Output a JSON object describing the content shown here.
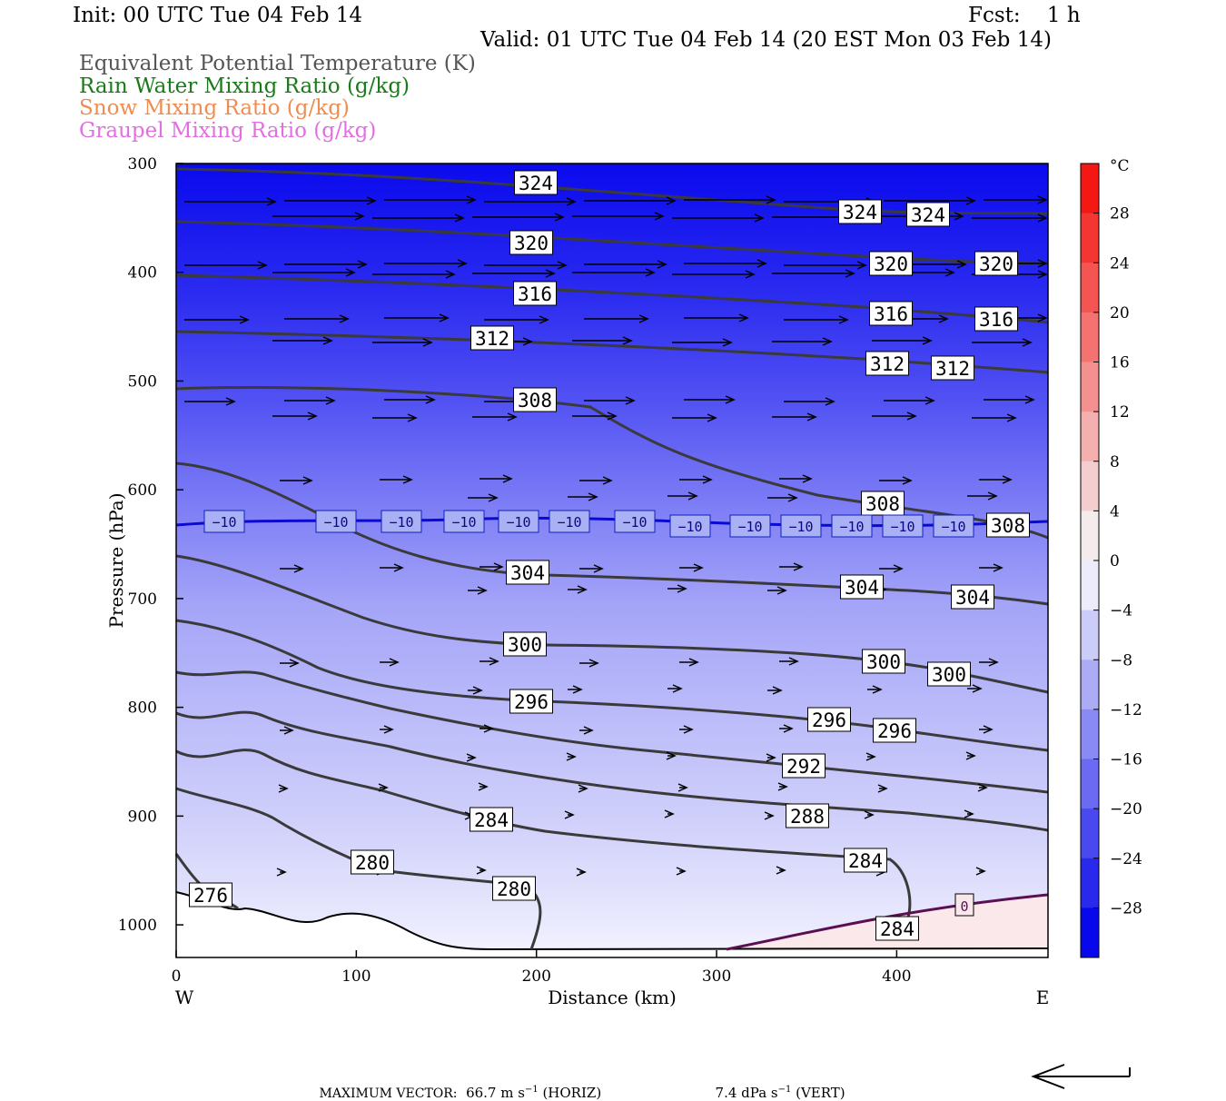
{
  "header": {
    "init": "Init: 00 UTC Tue 04 Feb 14",
    "fcst": "Fcst:    1 h",
    "valid": "Valid: 01 UTC Tue 04 Feb 14 (20 EST Mon 03 Feb 14)"
  },
  "legend": [
    {
      "text": "Equivalent Potential Temperature (K)",
      "color": "#555555"
    },
    {
      "text": "Rain Water Mixing Ratio (g/kg)",
      "color": "#1a7a1a"
    },
    {
      "text": "Snow Mixing Ratio (g/kg)",
      "color": "#f08c50"
    },
    {
      "text": "Graupel Mixing Ratio (g/kg)",
      "color": "#e070e0"
    }
  ],
  "chart_data": {
    "type": "contour",
    "xlabel": "Distance (km)",
    "ylabel": "Pressure (hPa)",
    "x_ticks": [
      "0",
      "100",
      "200",
      "300",
      "400"
    ],
    "y_ticks": [
      "300",
      "400",
      "500",
      "600",
      "700",
      "800",
      "900",
      "1000"
    ],
    "xlim": [
      0,
      484
    ],
    "ylim": [
      1030,
      300
    ],
    "left_end": "W",
    "right_end": "E",
    "colorbar": {
      "unit": "°C",
      "labels": [
        "28",
        "24",
        "20",
        "16",
        "12",
        "8",
        "4",
        "0",
        "−4",
        "−8",
        "−12",
        "−16",
        "−20",
        "−24",
        "−28"
      ]
    },
    "isotherm_label": "−10",
    "zero_label": "0",
    "theta_e_labels": [
      "324",
      "324",
      "324",
      "320",
      "320",
      "320",
      "316",
      "316",
      "316",
      "312",
      "312",
      "312",
      "308",
      "308",
      "308",
      "304",
      "304",
      "304",
      "300",
      "300",
      "300",
      "296",
      "296",
      "296",
      "292",
      "288",
      "284",
      "284",
      "284",
      "280",
      "280",
      "276"
    ]
  },
  "footer": {
    "max_vector_label": "MAXIMUM VECTOR:",
    "horiz_value": "66.7 m s",
    "horiz_exp": "−1",
    "horiz_suffix": " (HORIZ)",
    "vert_value": "7.4 dPa s",
    "vert_exp": "−1",
    "vert_suffix": " (VERT)"
  }
}
